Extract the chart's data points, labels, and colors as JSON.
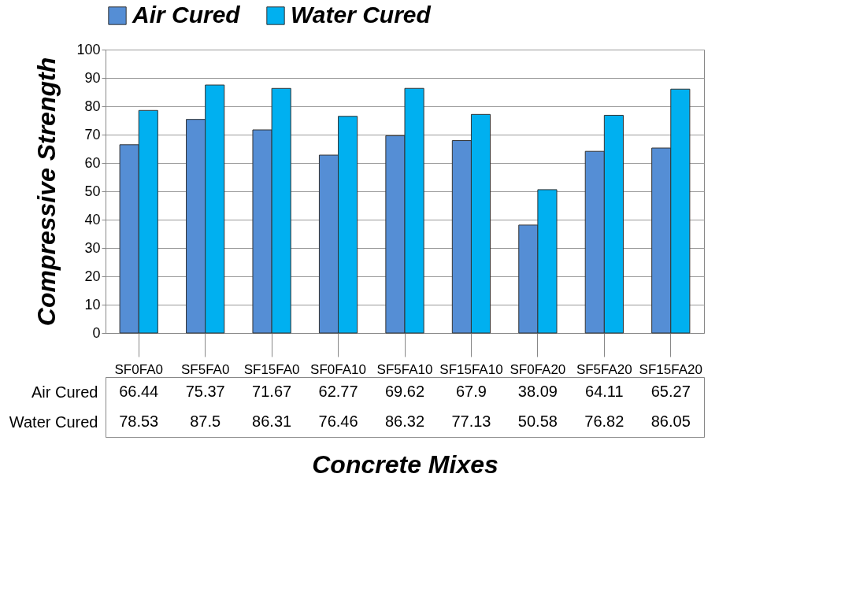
{
  "chart_data": {
    "type": "bar",
    "xlabel": "Concrete Mixes",
    "ylabel": "Compressive Strength",
    "categories": [
      "SF0FA0",
      "SF5FA0",
      "SF15FA0",
      "SF0FA10",
      "SF5FA10",
      "SF15FA10",
      "SF0FA20",
      "SF5FA20",
      "SF15FA20"
    ],
    "series": [
      {
        "name": "Air Cured",
        "color": "#558ed5",
        "values": [
          66.44,
          75.37,
          71.67,
          62.77,
          69.62,
          67.9,
          38.09,
          64.11,
          65.27
        ]
      },
      {
        "name": "Water Cured",
        "color": "#00b0f0",
        "values": [
          78.53,
          87.5,
          86.31,
          76.46,
          86.32,
          77.13,
          50.58,
          76.82,
          86.05
        ]
      }
    ],
    "ylim": [
      0,
      100
    ],
    "yticks": [
      0,
      10,
      20,
      30,
      40,
      50,
      60,
      70,
      80,
      90,
      100
    ],
    "grid": "y",
    "legend": "top",
    "data_labels": true
  }
}
